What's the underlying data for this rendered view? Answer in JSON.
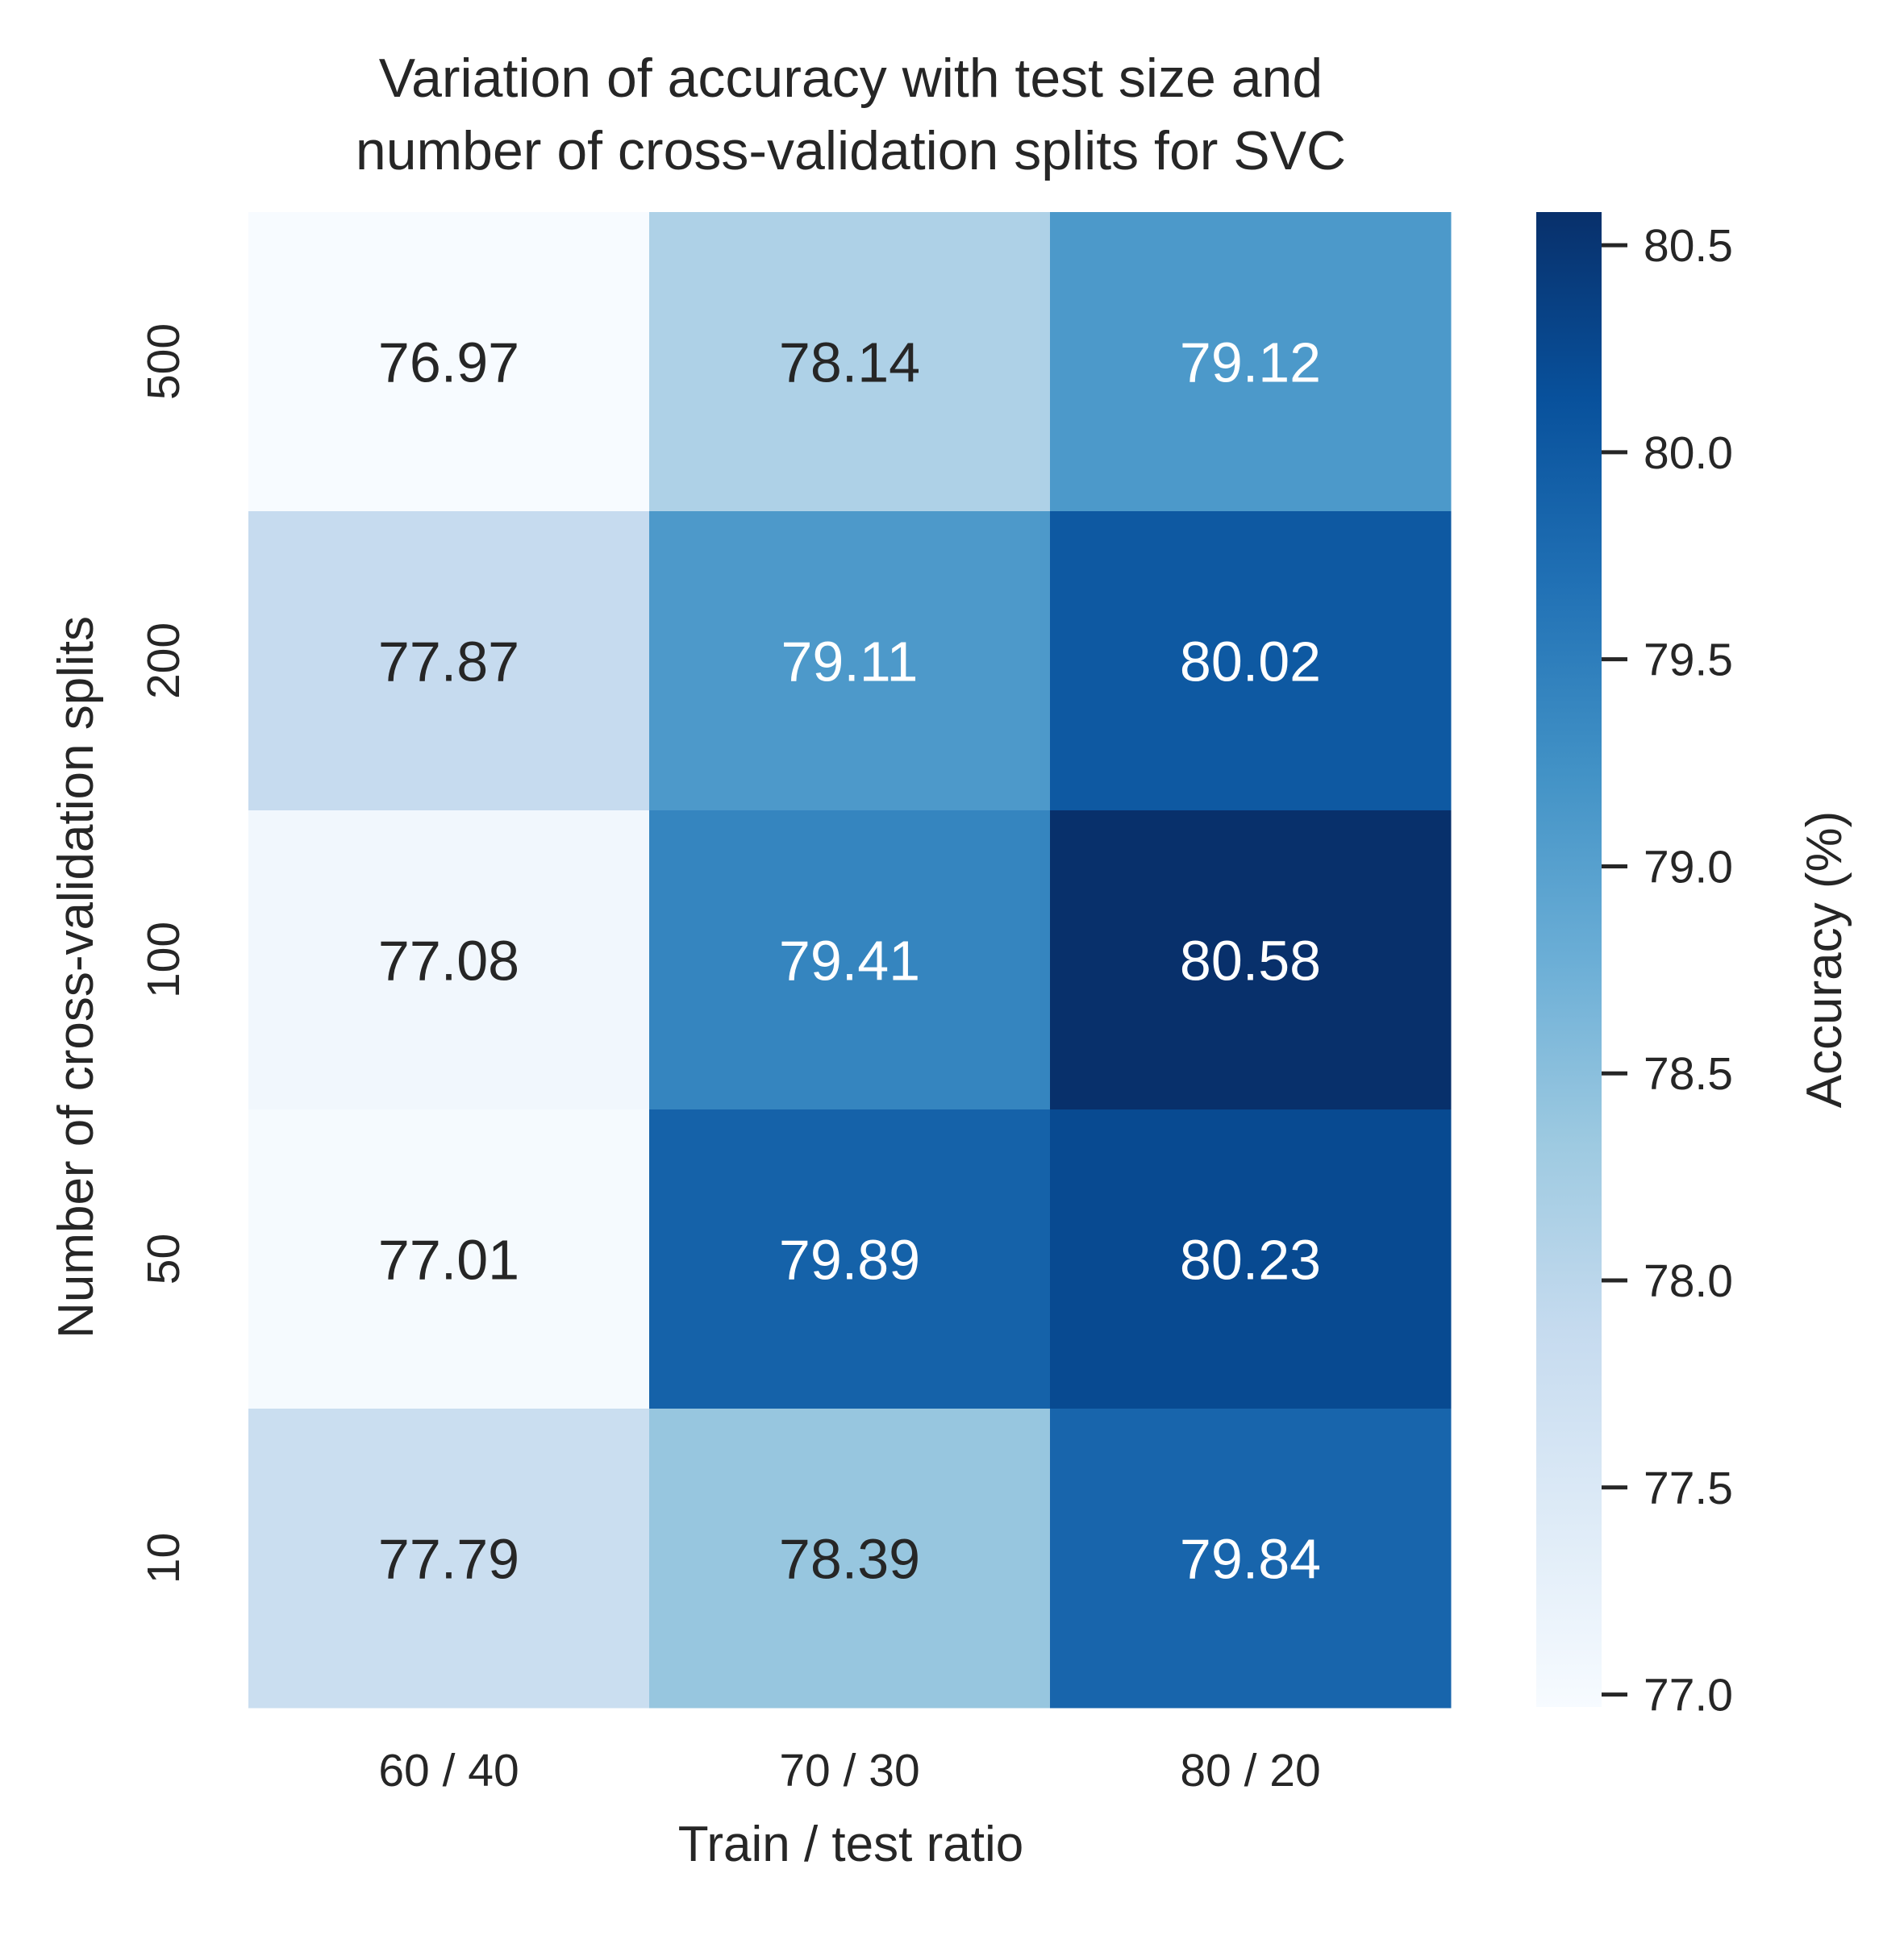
{
  "chart_data": {
    "type": "heatmap",
    "title_lines": [
      "Variation of accuracy with test size and",
      "number of cross-validation splits for SVC"
    ],
    "xlabel": "Train / test ratio",
    "ylabel": "Number of cross-validation splits",
    "x_categories": [
      "60 / 40",
      "70 / 30",
      "80 / 20"
    ],
    "y_categories": [
      "500",
      "200",
      "100",
      "50",
      "10"
    ],
    "values": [
      [
        76.97,
        78.14,
        79.12
      ],
      [
        77.87,
        79.11,
        80.02
      ],
      [
        77.08,
        79.41,
        80.58
      ],
      [
        77.01,
        79.89,
        80.23
      ],
      [
        77.79,
        78.39,
        79.84
      ]
    ],
    "value_labels": [
      [
        "76.97",
        "78.14",
        "79.12"
      ],
      [
        "77.87",
        "79.11",
        "80.02"
      ],
      [
        "77.08",
        "79.41",
        "80.58"
      ],
      [
        "77.01",
        "79.89",
        "80.23"
      ],
      [
        "77.79",
        "78.39",
        "79.84"
      ]
    ],
    "colormap": "Blues",
    "colormap_stops": [
      "#f7fbff",
      "#deebf7",
      "#c6dbef",
      "#9ecae1",
      "#6baed6",
      "#4292c6",
      "#2171b5",
      "#08519c",
      "#08306b"
    ],
    "color_range": [
      76.97,
      80.58
    ],
    "colorbar": {
      "label": "Accuracy (%)",
      "ticks": [
        77.0,
        77.5,
        78.0,
        78.5,
        79.0,
        79.5,
        80.0,
        80.5
      ],
      "tick_labels": [
        "77.0",
        "77.5",
        "78.0",
        "78.5",
        "79.0",
        "79.5",
        "80.0",
        "80.5"
      ]
    },
    "grid": false,
    "annotation_colors": {
      "light": "#ffffff",
      "dark": "#262626"
    }
  }
}
